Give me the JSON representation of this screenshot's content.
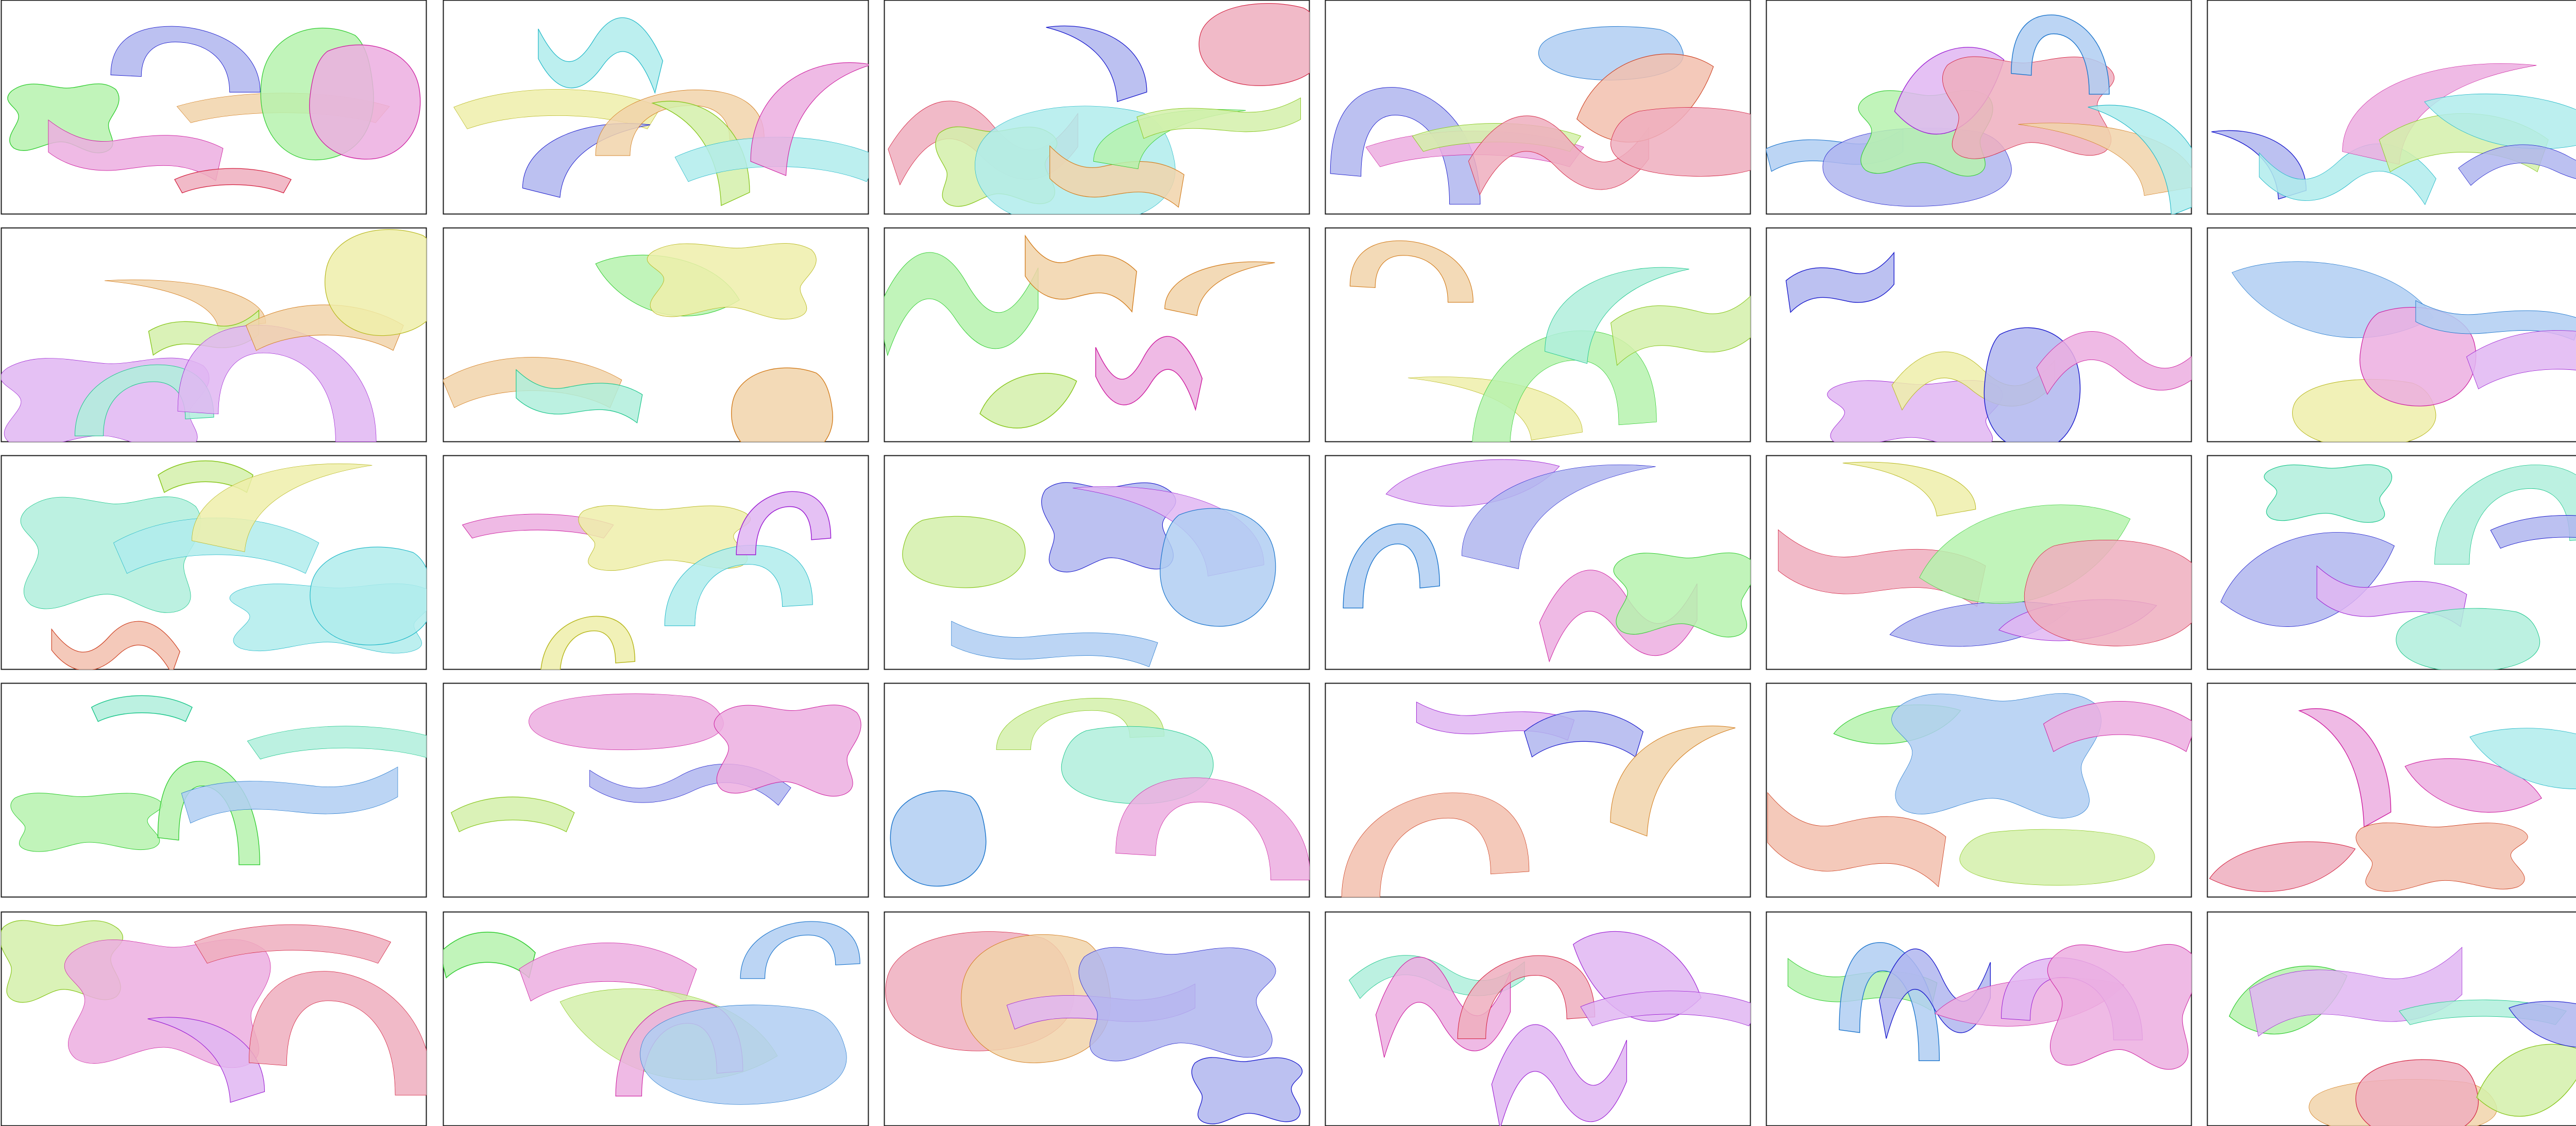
{
  "colors": {
    "green": {
      "stroke": "#2fcc2f",
      "fill": "#b6f2ae"
    },
    "pink": {
      "stroke": "#cc1a9e",
      "fill": "#ecaee0"
    },
    "blue": {
      "stroke": "#1a1acc",
      "fill": "#b0b6ee"
    },
    "orange": {
      "stroke": "#d27a18",
      "fill": "#f1d3aa"
    },
    "red": {
      "stroke": "#d21a3a",
      "fill": "#efaebe"
    },
    "yellow": {
      "stroke": "#b6b61a",
      "fill": "#eeeeaa"
    },
    "lime": {
      "stroke": "#86c61a",
      "fill": "#d4f0aa"
    },
    "cyan": {
      "stroke": "#1ab6c6",
      "fill": "#b0ecec"
    },
    "violet": {
      "stroke": "#9a1ad2",
      "fill": "#e0b6f2"
    },
    "teal": {
      "stroke": "#1ac68a",
      "fill": "#b0eedc"
    },
    "sky": {
      "stroke": "#1a74cc",
      "fill": "#b0cef2"
    },
    "salmon": {
      "stroke": "#cc3a1a",
      "fill": "#f2c0ae"
    }
  },
  "grid": {
    "rows": 5,
    "cols": 6
  },
  "panels": [
    [
      "green",
      "pink",
      "blue",
      "red",
      "orange",
      "green",
      "pink"
    ],
    [
      "yellow",
      "blue",
      "cyan",
      "orange",
      "lime",
      "cyan",
      "pink"
    ],
    [
      "red",
      "lime",
      "cyan",
      "blue",
      "orange",
      "green",
      "lime",
      "red"
    ],
    [
      "blue",
      "pink",
      "lime",
      "red",
      "sky",
      "salmon",
      "red"
    ],
    [
      "sky",
      "blue",
      "green",
      "violet",
      "red",
      "sky",
      "orange",
      "cyan"
    ],
    [
      "blue",
      "cyan",
      "pink",
      "lime",
      "cyan",
      "blue"
    ],
    [
      "violet",
      "teal",
      "orange",
      "lime",
      "violet",
      "orange",
      "yellow"
    ],
    [
      "orange",
      "teal",
      "green",
      "yellow",
      "orange"
    ],
    [
      "green",
      "lime",
      "orange",
      "pink",
      "orange"
    ],
    [
      "orange",
      "yellow",
      "green",
      "teal",
      "lime"
    ],
    [
      "blue",
      "violet",
      "yellow",
      "blue",
      "pink"
    ],
    [
      "sky",
      "yellow",
      "pink",
      "sky",
      "violet"
    ],
    [
      "teal",
      "salmon",
      "cyan",
      "lime",
      "yellow",
      "cyan",
      "cyan"
    ],
    [
      "pink",
      "yellow",
      "yellow",
      "cyan",
      "violet"
    ],
    [
      "lime",
      "sky",
      "blue",
      "violet",
      "sky"
    ],
    [
      "sky",
      "violet",
      "blue",
      "pink",
      "green"
    ],
    [
      "red",
      "yellow",
      "blue",
      "green",
      "violet",
      "red"
    ],
    [
      "blue",
      "teal",
      "violet",
      "teal",
      "teal",
      "blue"
    ],
    [
      "green",
      "teal",
      "green",
      "sky",
      "teal"
    ],
    [
      "lime",
      "pink",
      "blue",
      "pink"
    ],
    [
      "sky",
      "lime",
      "teal",
      "pink"
    ],
    [
      "salmon",
      "violet",
      "blue",
      "orange"
    ],
    [
      "salmon",
      "green",
      "sky",
      "lime",
      "pink"
    ],
    [
      "red",
      "pink",
      "salmon",
      "pink",
      "cyan"
    ],
    [
      "lime",
      "pink",
      "violet",
      "red",
      "red"
    ],
    [
      "green",
      "pink",
      "lime",
      "pink",
      "sky",
      "sky"
    ],
    [
      "red",
      "orange",
      "violet",
      "blue",
      "blue"
    ],
    [
      "teal",
      "pink",
      "red",
      "violet",
      "violet",
      "violet"
    ],
    [
      "green",
      "sky",
      "blue",
      "pink",
      "violet",
      "pink"
    ],
    [
      "green",
      "violet",
      "orange",
      "red",
      "teal",
      "lime",
      "blue"
    ]
  ]
}
